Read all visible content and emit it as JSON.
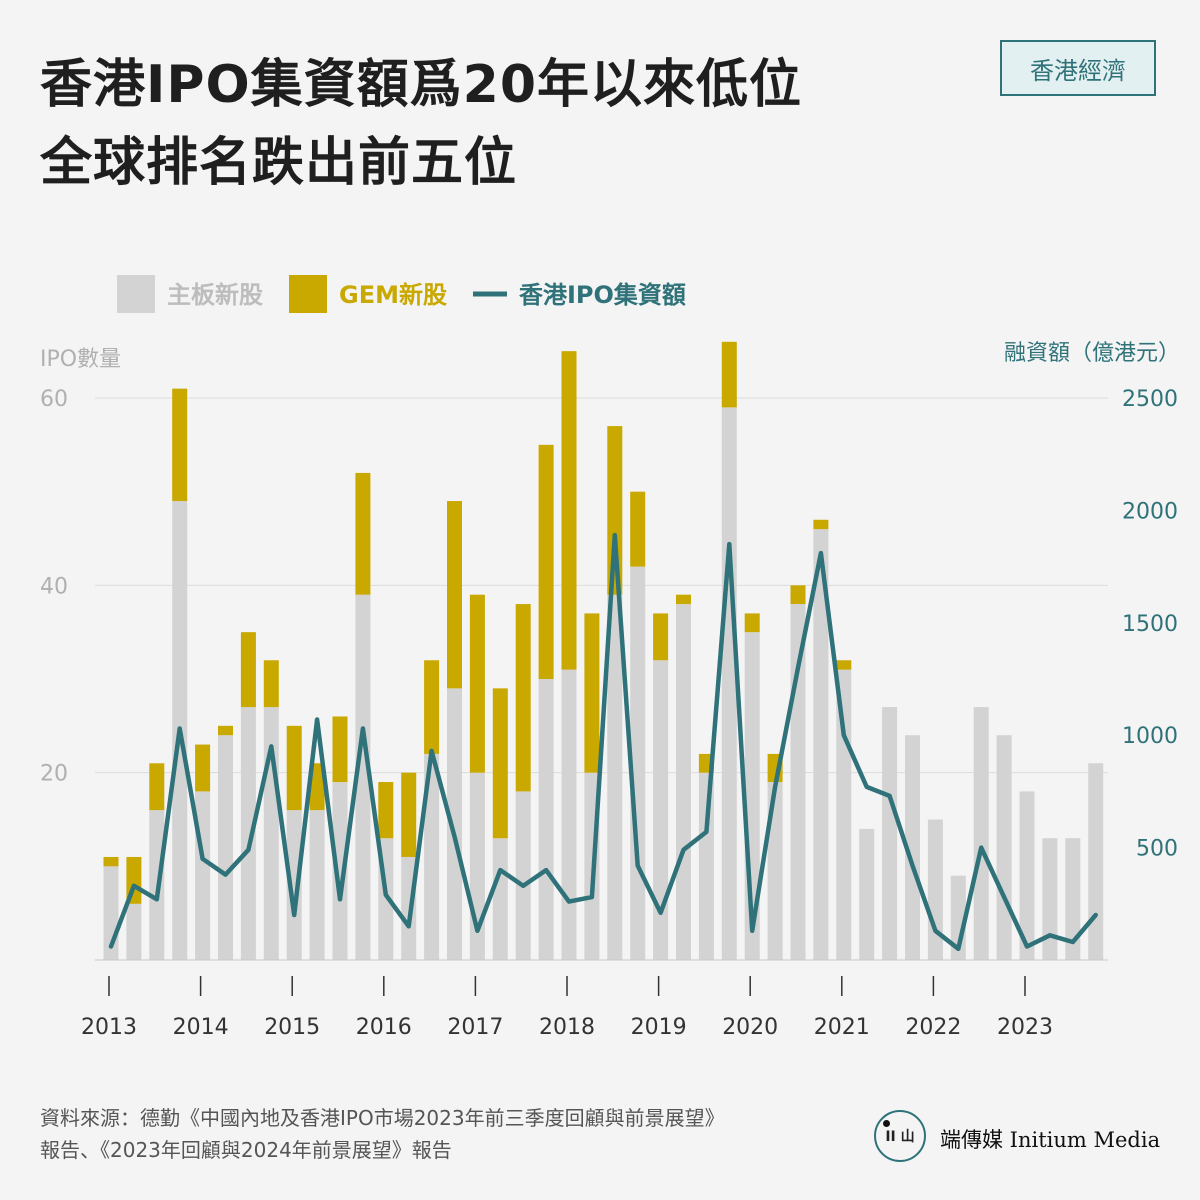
{
  "header": {
    "title_line1": "香港IPO集資額爲20年以來低位",
    "title_line2": "全球排名跌出前五位",
    "badge": "香港經濟"
  },
  "footer": {
    "source_line1": "資料來源：德勤《中國內地及香港IPO市場2023年前三季度回顧與前景展望》",
    "source_line2": "報告、《2023年回顧與2024年前景展望》報告"
  },
  "brand": {
    "mark": "II 山",
    "name": "端傳媒 Initium Media"
  },
  "colors": {
    "main_board": "#d3d3d3",
    "gem": "#c9a800",
    "line": "#2f7279",
    "left_axis_text": "#b0b0b0",
    "right_axis_text": "#2f7279",
    "badge_accent": "#2f7279"
  },
  "chart_data": {
    "type": "bar",
    "legend": {
      "position": "top-left",
      "items": [
        {
          "label": "主板新股",
          "kind": "square",
          "color": "#d3d3d3"
        },
        {
          "label": "GEM新股",
          "kind": "square",
          "color": "#c9a800"
        },
        {
          "label": "香港IPO集資額",
          "kind": "line",
          "color": "#2f7279"
        }
      ]
    },
    "ylabel_left": "IPO數量",
    "ylabel_right": "融資額（億港元）",
    "ylim_left": [
      0,
      60
    ],
    "yticks_left": [
      20,
      40,
      60
    ],
    "ylim_right": [
      0,
      2500
    ],
    "yticks_right": [
      500,
      1000,
      1500,
      2000,
      2500
    ],
    "grid": true,
    "x_years": [
      "2013",
      "2014",
      "2015",
      "2016",
      "2017",
      "2018",
      "2019",
      "2020",
      "2021",
      "2022",
      "2023"
    ],
    "categories": [
      "2013Q1",
      "2013Q2",
      "2013Q3",
      "2013Q4",
      "2014Q1",
      "2014Q2",
      "2014Q3",
      "2014Q4",
      "2015Q1",
      "2015Q2",
      "2015Q3",
      "2015Q4",
      "2016Q1",
      "2016Q2",
      "2016Q3",
      "2016Q4",
      "2017Q1",
      "2017Q2",
      "2017Q3",
      "2017Q4",
      "2018Q1",
      "2018Q2",
      "2018Q3",
      "2018Q4",
      "2019Q1",
      "2019Q2",
      "2019Q3",
      "2019Q4",
      "2020Q1",
      "2020Q2",
      "2020Q3",
      "2020Q4",
      "2021Q1",
      "2021Q2",
      "2021Q3",
      "2021Q4",
      "2022Q1",
      "2022Q2",
      "2022Q3",
      "2022Q4",
      "2023Q1",
      "2023Q2",
      "2023Q3",
      "2023Q4"
    ],
    "series": [
      {
        "name": "主板新股",
        "type": "bar",
        "axis": "left",
        "values": [
          10,
          6,
          16,
          49,
          18,
          24,
          27,
          27,
          16,
          16,
          19,
          39,
          13,
          11,
          22,
          29,
          20,
          13,
          18,
          30,
          31,
          20,
          39,
          42,
          32,
          38,
          20,
          59,
          35,
          19,
          38,
          46,
          31,
          14,
          27,
          24,
          15,
          9,
          27,
          24,
          18,
          13,
          13,
          21
        ]
      },
      {
        "name": "GEM新股",
        "type": "bar",
        "axis": "left",
        "values": [
          1,
          5,
          5,
          12,
          5,
          1,
          8,
          5,
          9,
          5,
          7,
          13,
          6,
          9,
          10,
          20,
          19,
          16,
          20,
          25,
          34,
          17,
          18,
          8,
          5,
          1,
          2,
          7,
          2,
          3,
          2,
          1,
          1,
          0,
          0,
          0,
          0,
          0,
          0,
          0,
          0,
          0,
          0,
          0
        ]
      },
      {
        "name": "香港IPO集資額",
        "type": "line",
        "axis": "right",
        "values": [
          60,
          330,
          270,
          1030,
          450,
          380,
          490,
          950,
          200,
          1070,
          270,
          1030,
          290,
          150,
          930,
          550,
          130,
          400,
          330,
          400,
          260,
          280,
          1890,
          420,
          210,
          490,
          570,
          1850,
          130,
          770,
          1300,
          1810,
          1000,
          770,
          730,
          420,
          130,
          50,
          500,
          280,
          60,
          110,
          80,
          200
        ]
      }
    ]
  }
}
